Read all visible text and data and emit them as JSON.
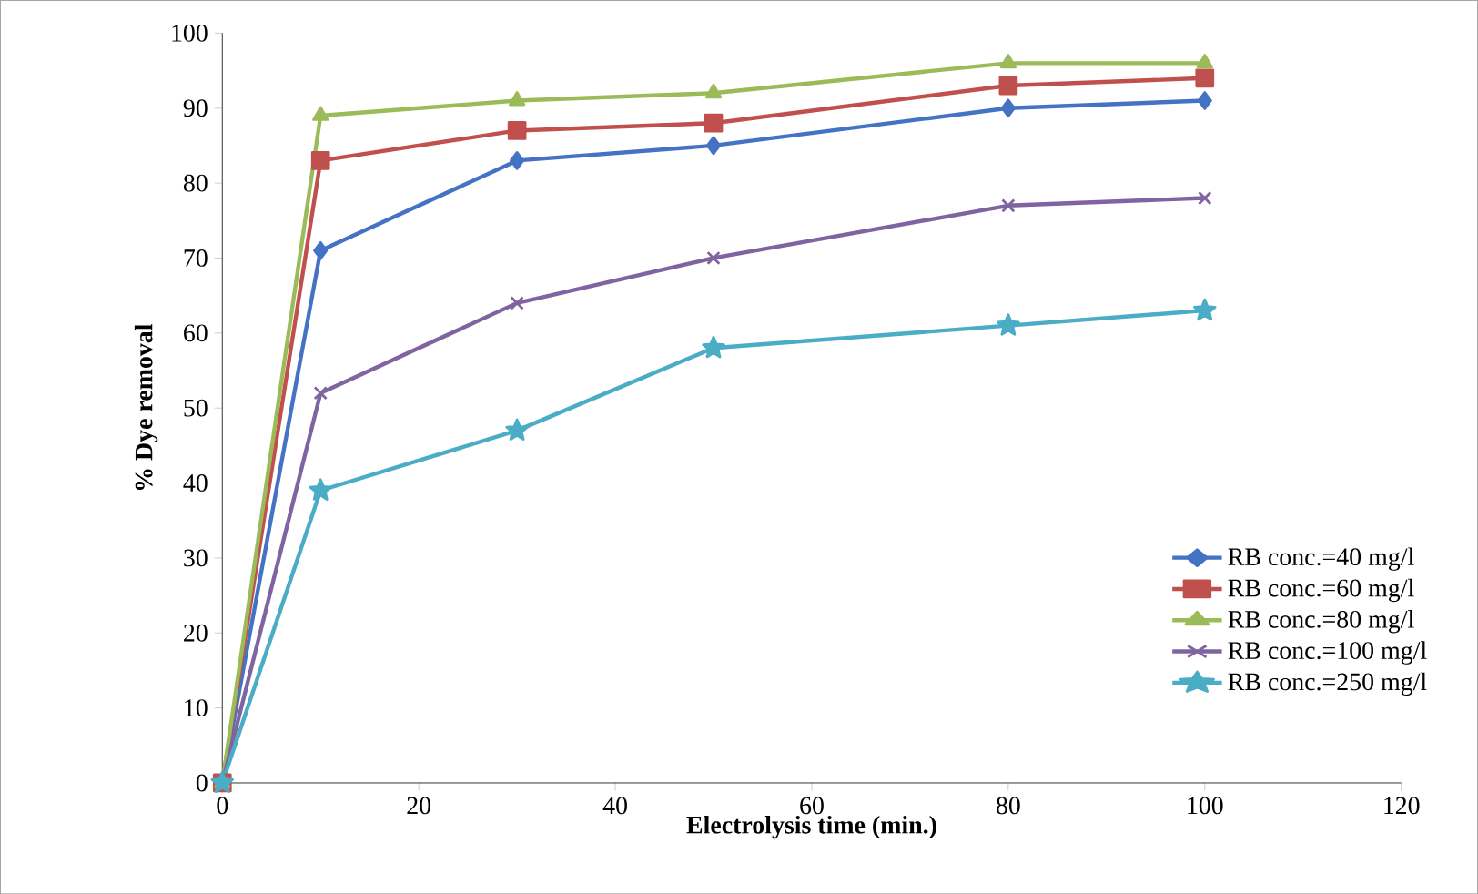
{
  "chart_data": {
    "type": "line",
    "xlabel": "Electrolysis time (min.)",
    "ylabel": "% Dye removal",
    "x": [
      0,
      10,
      30,
      50,
      80,
      100
    ],
    "series": [
      {
        "name": "RB conc.=40 mg/l",
        "color": "#4472c4",
        "marker": "diamond",
        "values": [
          0,
          71,
          83,
          85,
          90,
          91
        ]
      },
      {
        "name": "RB conc.=60 mg/l",
        "color": "#c0504d",
        "marker": "square",
        "values": [
          0,
          83,
          87,
          88,
          93,
          94
        ]
      },
      {
        "name": "RB conc.=80 mg/l",
        "color": "#9bbb59",
        "marker": "triangle",
        "values": [
          0,
          89,
          91,
          92,
          96,
          96
        ]
      },
      {
        "name": "RB conc.=100 mg/l",
        "color": "#8064a2",
        "marker": "cross",
        "values": [
          0,
          52,
          64,
          70,
          77,
          78
        ]
      },
      {
        "name": "RB conc.=250 mg/l",
        "color": "#4bacc6",
        "marker": "star",
        "values": [
          0,
          39,
          47,
          58,
          61,
          63
        ]
      }
    ],
    "xlim": [
      0,
      120
    ],
    "xticks": [
      0,
      20,
      40,
      60,
      80,
      100,
      120
    ],
    "ylim": [
      0,
      100
    ],
    "yticks": [
      0,
      10,
      20,
      30,
      40,
      50,
      60,
      70,
      80,
      90,
      100
    ],
    "legend": "right",
    "grid": false,
    "line_style": "solid"
  }
}
